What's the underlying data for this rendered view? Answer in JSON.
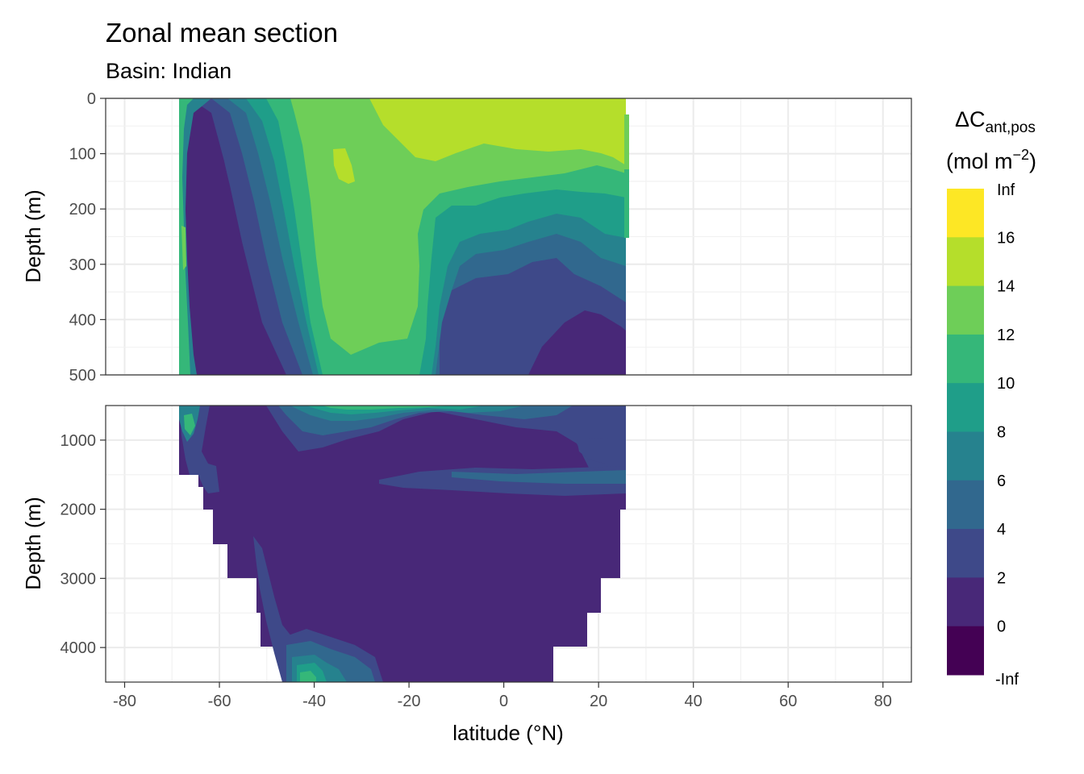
{
  "chart_data": {
    "type": "heatmap",
    "title": "Zonal mean section",
    "subtitle": "Basin: Indian",
    "xlabel": "latitude (°N)",
    "ylabel": "Depth (m)",
    "xlim": [
      -84,
      86
    ],
    "x_ticks": [
      -80,
      -60,
      -40,
      -20,
      0,
      20,
      40,
      60,
      80
    ],
    "x_tick_labels": [
      "-80",
      "-60",
      "-40",
      "-20",
      "0",
      "20",
      "40",
      "60",
      "80"
    ],
    "grid": true,
    "panels": [
      {
        "name": "upper",
        "ylim": [
          0,
          500
        ],
        "y_ticks": [
          0,
          100,
          200,
          300,
          400,
          500
        ],
        "y_tick_labels": [
          "0",
          "100",
          "200",
          "300",
          "400",
          "500"
        ]
      },
      {
        "name": "lower",
        "ylim": [
          500,
          4500
        ],
        "y_ticks": [
          1000,
          2000,
          3000,
          4000
        ],
        "y_tick_labels": [
          "1000",
          "2000",
          "3000",
          "4000"
        ]
      }
    ],
    "legend": {
      "title_main": "ΔC",
      "title_sub": "ant,pos",
      "units_prefix": "(mol m",
      "units_sup": "−2",
      "units_suffix": ")",
      "placement": "right",
      "breaks": [
        "Inf",
        "16",
        "14",
        "12",
        "10",
        "8",
        "6",
        "4",
        "2",
        "0",
        "-Inf"
      ],
      "colors": [
        "#fde725",
        "#b5de2b",
        "#6ece58",
        "#35b779",
        "#1f9e89",
        "#26828e",
        "#31688e",
        "#3e4989",
        "#482878",
        "#440154"
      ]
    },
    "field": {
      "bins": [
        "<0",
        "0-2",
        "2-4",
        "4-6",
        "6-8",
        "8-10",
        "10-12",
        "12-14",
        "14-16",
        ">16"
      ],
      "lat_extent": [
        -70,
        25
      ],
      "upper_regions": [
        {
          "bin": "0-2",
          "lat": [
            -69,
            -56
          ],
          "depth": [
            20,
            500
          ]
        },
        {
          "bin": "2-4",
          "lat": [
            -56,
            -49
          ],
          "depth": [
            60,
            500
          ]
        },
        {
          "bin": "4-6",
          "lat": [
            -53,
            -45
          ],
          "depth": [
            40,
            500
          ]
        },
        {
          "bin": "6-8",
          "lat": [
            -51,
            -43
          ],
          "depth": [
            20,
            500
          ]
        },
        {
          "bin": "8-10",
          "lat": [
            -48,
            -41
          ],
          "depth": [
            10,
            500
          ]
        },
        {
          "bin": "10-12",
          "lat": [
            -45,
            -38
          ],
          "depth": [
            0,
            500
          ]
        },
        {
          "bin": "12-14",
          "lat": [
            -38,
            -15
          ],
          "depth": [
            0,
            450
          ]
        },
        {
          "bin": "14-16",
          "lat": [
            -29,
            24
          ],
          "depth": [
            0,
            100
          ]
        }
      ],
      "lower_regions": [
        {
          "bin": "0-2",
          "lat": [
            -64,
            23
          ],
          "depth": [
            500,
            4500
          ]
        },
        {
          "bin": "2-4",
          "lat": [
            -30,
            23
          ],
          "depth": [
            1350,
            1750
          ]
        },
        {
          "bin": "4-6",
          "lat": [
            -35,
            -10
          ],
          "depth": [
            500,
            900
          ]
        },
        {
          "bin": "8-10",
          "lat": [
            -30,
            -15
          ],
          "depth": [
            500,
            650
          ]
        },
        {
          "bin": "6-8",
          "lat": [
            -46,
            -40
          ],
          "depth": [
            4100,
            4500
          ]
        }
      ]
    }
  }
}
